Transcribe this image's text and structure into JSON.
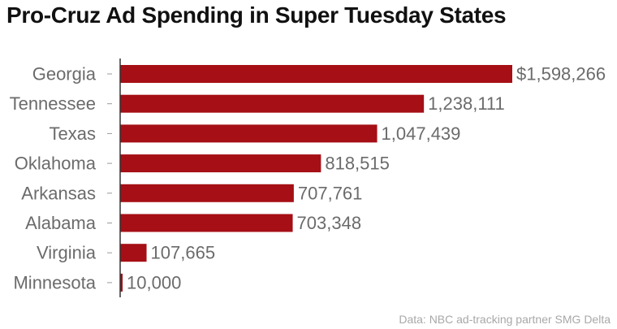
{
  "title": "Pro-Cruz Ad Spending in Super Tuesday States",
  "source": "Data: NBC ad-tracking partner SMG Delta",
  "colors": {
    "bar": "#a50f15",
    "axis": "#333333",
    "label": "#6b6b6b"
  },
  "chart_data": {
    "type": "bar",
    "orientation": "horizontal",
    "title": "Pro-Cruz Ad Spending in Super Tuesday States",
    "categories": [
      "Georgia",
      "Tennessee",
      "Texas",
      "Oklahoma",
      "Arkansas",
      "Alabama",
      "Virginia",
      "Minnesota"
    ],
    "values": [
      1598266,
      1238111,
      1047439,
      818515,
      707761,
      703348,
      107665,
      10000
    ],
    "value_labels": [
      "$1,598,266",
      "1,238,111",
      "1,047,439",
      "818,515",
      "707,761",
      "703,348",
      "107,665",
      "10,000"
    ],
    "xlim": [
      0,
      1598266
    ],
    "grid": false,
    "legend": "none"
  }
}
